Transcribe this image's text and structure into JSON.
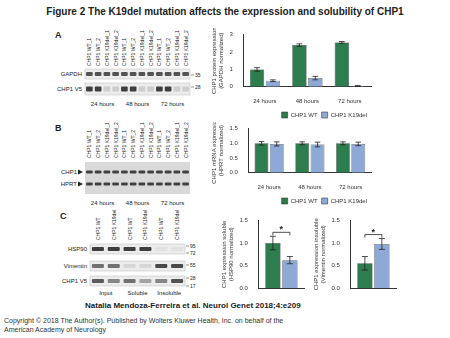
{
  "title": "Figure 2 The K19del mutation affects the expression and solubility of CHP1",
  "panel_labels": [
    "A",
    "B",
    "C"
  ],
  "blots": [
    {
      "panel": "A",
      "lanes": [
        "CHP1 WT_1",
        "CHP1 WT_2",
        "CHP1 K19del_1",
        "CHP1 K19del_2",
        "CHP1 WT_1",
        "CHP1 WT_2",
        "CHP1 K19del_1",
        "CHP1 K19del_2",
        "CHP1 WT_1",
        "CHP1 WT_2",
        "CHP1 K19del_1",
        "CHP1 K19del_2"
      ],
      "groups": [
        "24 hours",
        "48 hours",
        "72 hours"
      ],
      "bands": [
        "GAPDH",
        "CHP1 V5"
      ],
      "markers": [
        35,
        28
      ]
    },
    {
      "panel": "B",
      "lanes": [
        "CHP1 WT_1",
        "CHP1 WT_2",
        "CHP1 K19del_1",
        "CHP1 K19del_2",
        "CHP1 WT_1",
        "CHP1 WT_2",
        "CHP1 K19del_1",
        "CHP1 K19del_2",
        "CHP1 WT_1",
        "CHP1 WT_2",
        "CHP1 K19del_1",
        "CHP1 K19del_2"
      ],
      "groups": [
        "24 hours",
        "48 hours",
        "72 hours"
      ],
      "bands": [
        "CHP1",
        "HPRT"
      ],
      "markers": []
    },
    {
      "panel": "C",
      "lanes": [
        "CHP1 WT",
        "CHP1 K19del",
        "CHP1 WT",
        "CHP1 K19del",
        "CHP1 WT",
        "CHP1 K19del"
      ],
      "groups": [
        "Input",
        "Soluble",
        "Insoluble"
      ],
      "bands": [
        "HSP90",
        "Vimentin",
        "CHP1 V5"
      ],
      "markers": [
        95,
        72,
        55,
        28,
        17
      ]
    }
  ],
  "chart_data": [
    {
      "type": "bar",
      "panel": "A",
      "y_label": [
        "CHP1 protein expression",
        "(GAPDH normalized)"
      ],
      "categories": [
        "24 hours",
        "48 hours",
        "72 hours"
      ],
      "series": [
        {
          "name": "CHP1 WT",
          "color": "#2e7d4f",
          "values": [
            1.0,
            2.4,
            2.55
          ],
          "error": [
            0.1,
            0.07,
            0.05
          ]
        },
        {
          "name": "CHP1 K19del",
          "color": "#8fa9d6",
          "values": [
            0.35,
            0.5,
            0.05
          ],
          "error": [
            0.05,
            0.1,
            0.02
          ]
        }
      ],
      "ylim": [
        0,
        3
      ],
      "yticks": [
        0,
        1,
        2,
        3
      ],
      "grid": false,
      "legend": "bottom"
    },
    {
      "type": "bar",
      "panel": "B",
      "y_label": [
        "CHP1 mRNA expression",
        "(HPRT normalized)"
      ],
      "categories": [
        "24 hours",
        "48 hours",
        "72 hours"
      ],
      "series": [
        {
          "name": "CHP1 WT",
          "color": "#2e7d4f",
          "values": [
            1.0,
            1.0,
            1.0
          ],
          "error": [
            0.06,
            0.05,
            0.05
          ]
        },
        {
          "name": "CHP1 K19del",
          "color": "#8fa9d6",
          "values": [
            0.98,
            0.96,
            0.98
          ],
          "error": [
            0.07,
            0.08,
            0.06
          ]
        }
      ],
      "ylim": [
        0,
        1.5
      ],
      "yticks": [
        {
          "value": 0,
          "label": "0.0"
        },
        0.5,
        {
          "value": 1,
          "label": "1.0"
        },
        1.5
      ],
      "grid": false,
      "legend": "bottom"
    },
    {
      "type": "bar",
      "panel": "C",
      "y_label": [
        "CHP1 expression soluble",
        "(HSP90 normalized)"
      ],
      "categories": [
        null
      ],
      "series": [
        {
          "name": "CHP1 WT",
          "color": "#2e7d4f",
          "values": [
            1.0
          ],
          "error": [
            0.15
          ]
        },
        {
          "name": "CHP1 K19del",
          "color": "#8fa9d6",
          "values": [
            0.62
          ],
          "error": [
            0.08
          ]
        }
      ],
      "ylim": [
        0,
        1.5
      ],
      "yticks": [
        {
          "value": 0,
          "label": "0.0"
        },
        0.5,
        {
          "value": 1,
          "label": "1.0"
        },
        1.5
      ],
      "grid": false,
      "tick_labels": "y",
      "annotations": [
        {
          "text": "*"
        }
      ]
    },
    {
      "type": "bar",
      "panel": "C",
      "y_label": [
        "CHP1 expression insoluble",
        "(Vimentin normalized)"
      ],
      "categories": [
        null
      ],
      "series": [
        {
          "name": "CHP1 WT",
          "color": "#2e7d4f",
          "values": [
            0.55
          ],
          "error": [
            0.15
          ]
        },
        {
          "name": "CHP1 K19del",
          "color": "#8fa9d6",
          "values": [
            0.98
          ],
          "error": [
            0.12
          ]
        }
      ],
      "ylim": [
        0,
        1.5
      ],
      "yticks": [
        {
          "value": 0,
          "label": "0.0"
        },
        0.5,
        {
          "value": 1,
          "label": "1.0"
        },
        1.5
      ],
      "grid": false,
      "tick_labels": "y",
      "annotations": [
        {
          "text": "*"
        }
      ]
    }
  ],
  "citation": "Natalia Mendoza-Ferreira et al. Neurol Genet 2018;4:e209",
  "copyright": [
    "Copyright © 2018 The Author(s). Published by Wolters Kluwer Health, Inc. on behalf of the",
    "American Academy of Neurology"
  ]
}
